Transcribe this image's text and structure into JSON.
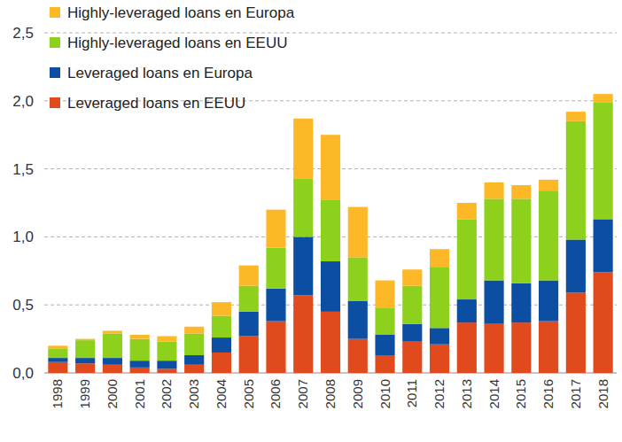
{
  "chart_data": {
    "type": "bar",
    "stacked": true,
    "grid": true,
    "legend": "top-left",
    "categories": [
      "1998",
      "1999",
      "2000",
      "2001",
      "2002",
      "2003",
      "2004",
      "2005",
      "2006",
      "2007",
      "2008",
      "2009",
      "2010",
      "2011",
      "2012",
      "2013",
      "2014",
      "2015",
      "2016",
      "2017",
      "2018"
    ],
    "ylim": [
      0,
      2.5
    ],
    "yticks": [
      {
        "value": 0,
        "label": "0,0"
      },
      {
        "value": 0.5,
        "label": "0,5"
      },
      {
        "value": 1,
        "label": "1,0"
      },
      {
        "value": 1.5,
        "label": "1,5"
      },
      {
        "value": 2,
        "label": "2,0"
      },
      {
        "value": 2.5,
        "label": "2,5"
      }
    ],
    "series": [
      {
        "name": "Leveraged loans en EEUU",
        "color": "#e04a1d",
        "values": [
          0.08,
          0.07,
          0.06,
          0.04,
          0.03,
          0.06,
          0.15,
          0.27,
          0.38,
          0.57,
          0.45,
          0.25,
          0.13,
          0.23,
          0.21,
          0.37,
          0.36,
          0.37,
          0.38,
          0.59,
          0.74
        ]
      },
      {
        "name": "Leveraged loans en Europa",
        "color": "#0b4ea2",
        "values": [
          0.03,
          0.04,
          0.05,
          0.05,
          0.06,
          0.07,
          0.11,
          0.18,
          0.24,
          0.43,
          0.37,
          0.28,
          0.15,
          0.13,
          0.12,
          0.17,
          0.32,
          0.29,
          0.3,
          0.39,
          0.39
        ]
      },
      {
        "name": "Highly-leveraged loans en EEUU",
        "color": "#8ed11c",
        "values": [
          0.07,
          0.13,
          0.18,
          0.16,
          0.14,
          0.16,
          0.16,
          0.19,
          0.3,
          0.43,
          0.45,
          0.32,
          0.2,
          0.28,
          0.45,
          0.59,
          0.6,
          0.62,
          0.66,
          0.87,
          0.86
        ]
      },
      {
        "name": "Highly-leveraged loans en Europa",
        "color": "#fdb827",
        "values": [
          0.02,
          0.01,
          0.02,
          0.03,
          0.04,
          0.05,
          0.1,
          0.15,
          0.28,
          0.44,
          0.48,
          0.37,
          0.2,
          0.12,
          0.13,
          0.12,
          0.12,
          0.1,
          0.08,
          0.07,
          0.06
        ]
      }
    ]
  }
}
